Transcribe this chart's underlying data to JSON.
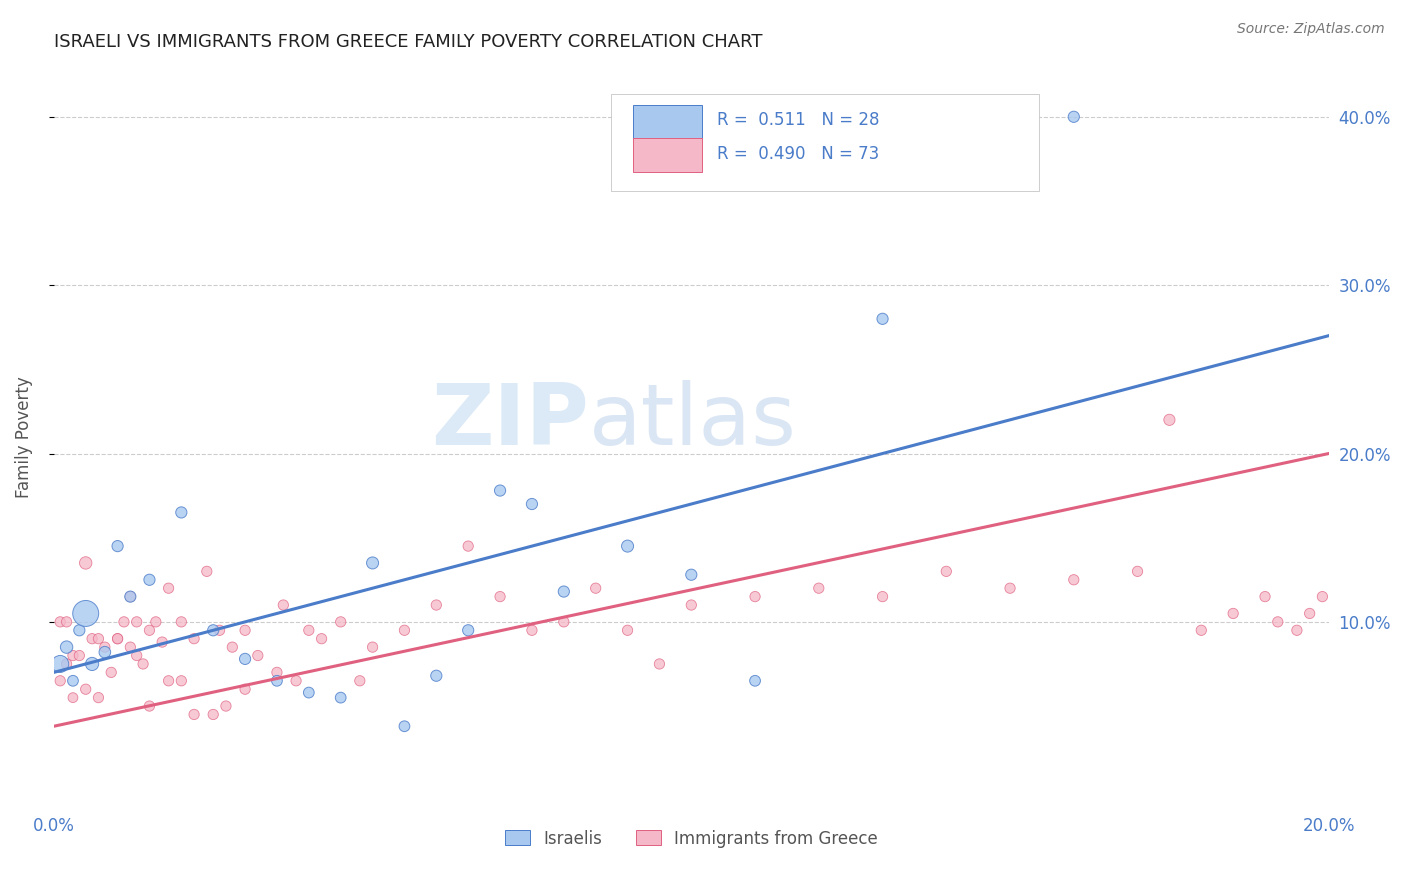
{
  "title": "ISRAELI VS IMMIGRANTS FROM GREECE FAMILY POVERTY CORRELATION CHART",
  "source": "Source: ZipAtlas.com",
  "ylabel": "Family Poverty",
  "xlim": [
    0.0,
    0.2
  ],
  "ylim": [
    -0.01,
    0.43
  ],
  "xticks": [
    0.0,
    0.05,
    0.1,
    0.15,
    0.2
  ],
  "xtick_labels": [
    "0.0%",
    "",
    "",
    "",
    "20.0%"
  ],
  "yticks": [
    0.1,
    0.2,
    0.3,
    0.4
  ],
  "ytick_labels": [
    "10.0%",
    "20.0%",
    "30.0%",
    "40.0%"
  ],
  "watermark_zip": "ZIP",
  "watermark_atlas": "atlas",
  "legend_blue_R": "0.511",
  "legend_blue_N": "28",
  "legend_pink_R": "0.490",
  "legend_pink_N": "73",
  "legend_label_blue": "Israelis",
  "legend_label_pink": "Immigrants from Greece",
  "blue_fill": "#a8c8f0",
  "pink_fill": "#f5b8c8",
  "blue_edge": "#4a7cc9",
  "pink_edge": "#e06080",
  "blue_line": "#4a7cc9",
  "pink_line": "#e06080",
  "title_color": "#222222",
  "axis_label_color": "#555555",
  "tick_color": "#4a7cc9",
  "grid_color": "#cccccc",
  "blue_line_x": [
    0.0,
    0.2
  ],
  "blue_line_y": [
    0.07,
    0.27
  ],
  "pink_line_x": [
    0.0,
    0.2
  ],
  "pink_line_y": [
    0.038,
    0.2
  ],
  "israelis_x": [
    0.001,
    0.002,
    0.003,
    0.004,
    0.005,
    0.006,
    0.008,
    0.01,
    0.012,
    0.015,
    0.02,
    0.025,
    0.035,
    0.04,
    0.05,
    0.055,
    0.06,
    0.065,
    0.07,
    0.08,
    0.09,
    0.1,
    0.13,
    0.16,
    0.03,
    0.045,
    0.11,
    0.075
  ],
  "israelis_y": [
    0.075,
    0.085,
    0.065,
    0.095,
    0.105,
    0.075,
    0.082,
    0.145,
    0.115,
    0.125,
    0.165,
    0.095,
    0.065,
    0.058,
    0.135,
    0.038,
    0.068,
    0.095,
    0.178,
    0.118,
    0.145,
    0.128,
    0.28,
    0.4,
    0.078,
    0.055,
    0.065,
    0.17
  ],
  "israelis_size": [
    150,
    80,
    60,
    65,
    350,
    90,
    70,
    65,
    65,
    65,
    65,
    65,
    60,
    60,
    75,
    60,
    65,
    65,
    65,
    65,
    75,
    65,
    65,
    65,
    65,
    60,
    60,
    65
  ],
  "greece_x": [
    0.001,
    0.001,
    0.002,
    0.002,
    0.003,
    0.003,
    0.004,
    0.005,
    0.005,
    0.006,
    0.007,
    0.007,
    0.008,
    0.009,
    0.01,
    0.01,
    0.011,
    0.012,
    0.012,
    0.013,
    0.013,
    0.014,
    0.015,
    0.015,
    0.016,
    0.017,
    0.018,
    0.018,
    0.02,
    0.02,
    0.022,
    0.022,
    0.024,
    0.025,
    0.026,
    0.027,
    0.028,
    0.03,
    0.03,
    0.032,
    0.035,
    0.036,
    0.038,
    0.04,
    0.042,
    0.045,
    0.048,
    0.05,
    0.055,
    0.06,
    0.065,
    0.07,
    0.075,
    0.08,
    0.085,
    0.09,
    0.095,
    0.1,
    0.11,
    0.12,
    0.13,
    0.14,
    0.15,
    0.16,
    0.17,
    0.175,
    0.18,
    0.185,
    0.19,
    0.192,
    0.195,
    0.197,
    0.199
  ],
  "greece_y": [
    0.065,
    0.1,
    0.075,
    0.1,
    0.055,
    0.08,
    0.08,
    0.135,
    0.06,
    0.09,
    0.055,
    0.09,
    0.085,
    0.07,
    0.09,
    0.09,
    0.1,
    0.115,
    0.085,
    0.08,
    0.1,
    0.075,
    0.095,
    0.05,
    0.1,
    0.088,
    0.12,
    0.065,
    0.1,
    0.065,
    0.09,
    0.045,
    0.13,
    0.045,
    0.095,
    0.05,
    0.085,
    0.095,
    0.06,
    0.08,
    0.07,
    0.11,
    0.065,
    0.095,
    0.09,
    0.1,
    0.065,
    0.085,
    0.095,
    0.11,
    0.145,
    0.115,
    0.095,
    0.1,
    0.12,
    0.095,
    0.075,
    0.11,
    0.115,
    0.12,
    0.115,
    0.13,
    0.12,
    0.125,
    0.13,
    0.22,
    0.095,
    0.105,
    0.115,
    0.1,
    0.095,
    0.105,
    0.115
  ],
  "greece_size": [
    55,
    55,
    55,
    55,
    50,
    55,
    55,
    80,
    55,
    55,
    55,
    55,
    55,
    55,
    55,
    55,
    55,
    55,
    55,
    55,
    55,
    55,
    55,
    55,
    55,
    55,
    55,
    55,
    55,
    55,
    55,
    55,
    55,
    55,
    55,
    55,
    55,
    55,
    55,
    55,
    55,
    55,
    55,
    55,
    55,
    55,
    55,
    55,
    55,
    55,
    55,
    55,
    55,
    55,
    55,
    55,
    55,
    55,
    55,
    55,
    55,
    55,
    55,
    55,
    55,
    65,
    55,
    55,
    55,
    55,
    55,
    55,
    55
  ]
}
